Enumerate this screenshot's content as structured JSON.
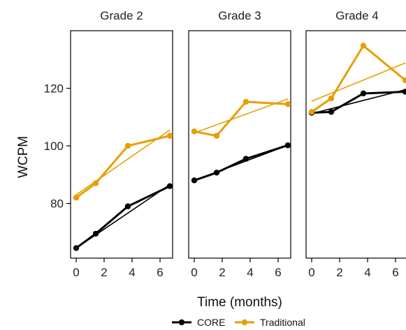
{
  "chart_data": {
    "type": "line",
    "xlabel": "Time (months)",
    "ylabel": "WCPM",
    "xlim": [
      -0.4,
      6.9
    ],
    "ylim": [
      61,
      140
    ],
    "x_ticks": [
      "0",
      "2",
      "4",
      "6"
    ],
    "y_ticks": [
      "80",
      "100",
      "120"
    ],
    "colors": {
      "CORE": "#000000",
      "Traditional": "#E69F00"
    },
    "legend": {
      "placement": "bottom",
      "entries": [
        {
          "name": "CORE",
          "color": "#000000"
        },
        {
          "name": "Traditional",
          "color": "#E69F00"
        }
      ]
    },
    "panels": [
      {
        "title": "Grade 2",
        "series": [
          {
            "name": "CORE",
            "x": [
              0,
              1.4,
              3.7,
              6.7
            ],
            "y": [
              64.5,
              69.5,
              79,
              86
            ]
          },
          {
            "name": "Traditional",
            "x": [
              0,
              1.4,
              3.7,
              6.7
            ],
            "y": [
              82,
              87,
              100,
              103.5
            ]
          }
        ],
        "trend": [
          {
            "name": "CORE",
            "x": [
              0,
              6.7
            ],
            "y": [
              64.5,
              86.5
            ]
          },
          {
            "name": "Traditional",
            "x": [
              0,
              6.7
            ],
            "y": [
              83,
              105.5
            ]
          }
        ]
      },
      {
        "title": "Grade 3",
        "series": [
          {
            "name": "CORE",
            "x": [
              0,
              1.6,
              3.7,
              6.7
            ],
            "y": [
              88,
              90.7,
              95.5,
              100.2
            ]
          },
          {
            "name": "Traditional",
            "x": [
              0,
              1.6,
              3.7,
              6.7
            ],
            "y": [
              105,
              103.5,
              115.3,
              114.5
            ]
          }
        ],
        "trend": [
          {
            "name": "CORE",
            "x": [
              0,
              6.7
            ],
            "y": [
              88,
              100.2
            ]
          },
          {
            "name": "Traditional",
            "x": [
              0,
              6.7
            ],
            "y": [
              104.5,
              116.3
            ]
          }
        ]
      },
      {
        "title": "Grade 4",
        "series": [
          {
            "name": "CORE",
            "x": [
              0,
              1.4,
              3.7,
              6.7
            ],
            "y": [
              111.5,
              111.8,
              118.2,
              118.8
            ]
          },
          {
            "name": "Traditional",
            "x": [
              0,
              1.4,
              3.7,
              6.7
            ],
            "y": [
              111.8,
              116.5,
              134.8,
              122.8
            ]
          }
        ],
        "trend": [
          {
            "name": "CORE",
            "x": [
              0,
              6.7
            ],
            "y": [
              111.2,
              119.5
            ]
          },
          {
            "name": "Traditional",
            "x": [
              0,
              6.7
            ],
            "y": [
              115.5,
              128.8
            ]
          }
        ]
      }
    ]
  }
}
